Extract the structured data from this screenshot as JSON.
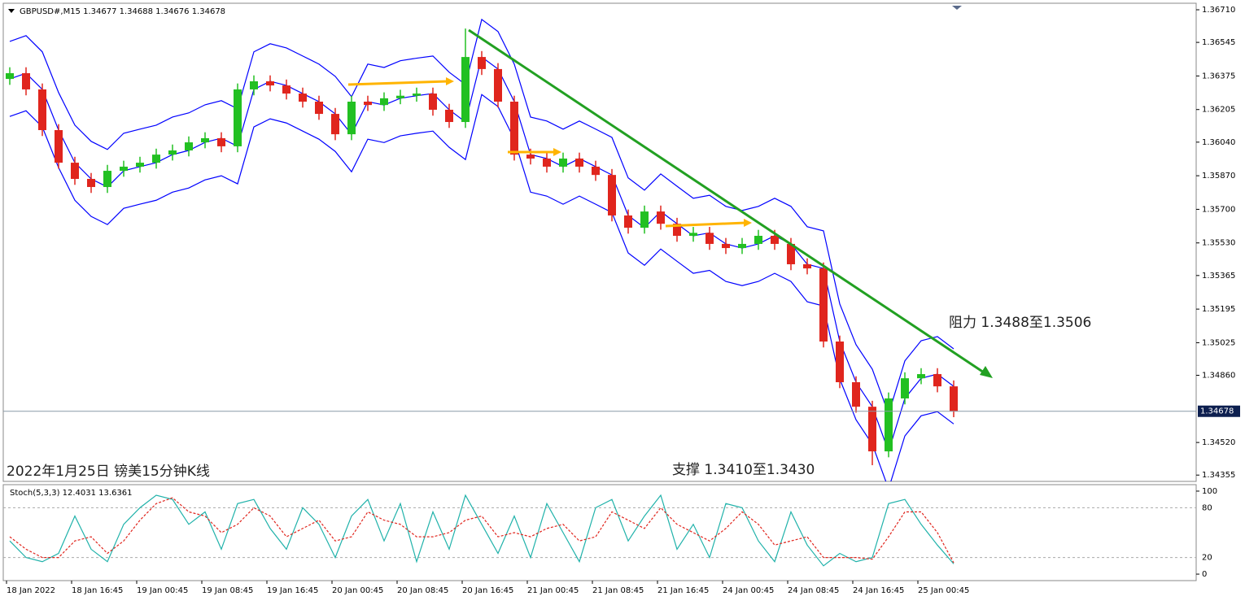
{
  "chart_data": [
    {
      "type": "candlestick",
      "title": "GBPUSD#,M15  1.34677 1.34688 1.34676 1.34678",
      "caption": "2022年1月25日 镑美15分钟K线",
      "annotations": [
        "阻力 1.3488至1.3506",
        "支撑 1.3410至1.3430"
      ],
      "categories": [
        "18 Jan 2022",
        null,
        null,
        null,
        "18 Jan 16:45",
        null,
        null,
        null,
        "19 Jan 00:45",
        null,
        null,
        null,
        "19 Jan 08:45",
        null,
        null,
        null,
        "19 Jan 16:45",
        null,
        null,
        null,
        "20 Jan 00:45",
        null,
        null,
        null,
        "20 Jan 08:45",
        null,
        null,
        null,
        "20 Jan 16:45",
        null,
        null,
        null,
        "21 Jan 00:45",
        null,
        null,
        null,
        "21 Jan 08:45",
        null,
        null,
        null,
        "21 Jan 16:45",
        null,
        null,
        null,
        "24 Jan 00:45",
        null,
        null,
        null,
        "24 Jan 08:45",
        null,
        null,
        null,
        "24 Jan 16:45",
        null,
        null,
        null,
        "25 Jan 00:45",
        null,
        null
      ],
      "open": [
        1.3636,
        1.36389,
        1.36307,
        1.36101,
        1.35936,
        1.35854,
        1.35813,
        1.35895,
        1.35916,
        1.35936,
        1.35977,
        1.35998,
        1.36039,
        1.3606,
        1.36019,
        1.36307,
        1.36348,
        1.36327,
        1.36286,
        1.36245,
        1.36183,
        1.3608,
        1.36245,
        1.36228,
        1.36262,
        1.36275,
        1.36286,
        1.36204,
        1.36142,
        1.36471,
        1.3641,
        1.36245,
        1.35977,
        1.35957,
        1.35916,
        1.35957,
        1.35916,
        1.35874,
        1.35669,
        1.35607,
        1.35689,
        1.35627,
        1.35566,
        1.35581,
        1.35525,
        1.35504,
        1.35525,
        1.35566,
        1.35525,
        1.35422,
        1.35401,
        1.35031,
        1.34825,
        1.34701,
        1.34475,
        1.34743,
        1.34845,
        1.34866,
        1.34804
      ],
      "high": [
        1.36419,
        1.36419,
        1.36337,
        1.36131,
        1.35966,
        1.35884,
        1.35925,
        1.35946,
        1.35966,
        1.36007,
        1.36028,
        1.36069,
        1.3609,
        1.3609,
        1.36337,
        1.36378,
        1.36378,
        1.36357,
        1.36316,
        1.36275,
        1.36213,
        1.36275,
        1.36275,
        1.36292,
        1.36305,
        1.36316,
        1.36316,
        1.36234,
        1.36615,
        1.36501,
        1.3644,
        1.36275,
        1.36007,
        1.35987,
        1.35987,
        1.35987,
        1.35946,
        1.35904,
        1.35699,
        1.35719,
        1.35719,
        1.35657,
        1.35611,
        1.35611,
        1.35555,
        1.35555,
        1.35596,
        1.35596,
        1.35555,
        1.35452,
        1.35431,
        1.35061,
        1.34855,
        1.34731,
        1.34773,
        1.34875,
        1.34896,
        1.34896,
        1.34834
      ],
      "low": [
        1.3633,
        1.36277,
        1.36071,
        1.35906,
        1.35824,
        1.35783,
        1.35783,
        1.35865,
        1.35886,
        1.35906,
        1.35947,
        1.35968,
        1.36009,
        1.35989,
        1.35989,
        1.36277,
        1.36297,
        1.36256,
        1.36215,
        1.36153,
        1.3605,
        1.3605,
        1.36198,
        1.36198,
        1.36232,
        1.36245,
        1.36174,
        1.36112,
        1.36112,
        1.3638,
        1.36215,
        1.35947,
        1.35927,
        1.35886,
        1.35886,
        1.35886,
        1.35844,
        1.35639,
        1.35577,
        1.35577,
        1.35597,
        1.35536,
        1.35536,
        1.35495,
        1.35474,
        1.35474,
        1.35495,
        1.35495,
        1.35392,
        1.35371,
        1.35001,
        1.34795,
        1.34671,
        1.34405,
        1.34445,
        1.34713,
        1.34815,
        1.34774,
        1.34648
      ],
      "close": [
        1.36389,
        1.36307,
        1.36101,
        1.35936,
        1.35854,
        1.35813,
        1.35895,
        1.35916,
        1.35936,
        1.35977,
        1.35998,
        1.36039,
        1.3606,
        1.36019,
        1.36307,
        1.36348,
        1.36327,
        1.36286,
        1.36245,
        1.36183,
        1.3608,
        1.36245,
        1.36228,
        1.36262,
        1.36275,
        1.36286,
        1.36204,
        1.36142,
        1.36471,
        1.3641,
        1.36245,
        1.35977,
        1.35957,
        1.35916,
        1.35957,
        1.35916,
        1.35874,
        1.35669,
        1.35607,
        1.35689,
        1.35627,
        1.35566,
        1.35581,
        1.35525,
        1.35504,
        1.35525,
        1.35566,
        1.35525,
        1.35422,
        1.35401,
        1.35031,
        1.34825,
        1.34701,
        1.34475,
        1.34743,
        1.34845,
        1.34866,
        1.34804,
        1.34678
      ],
      "up_color": "#22c022",
      "down_color": "#e0251d",
      "bands": {
        "color": "#0000ff",
        "upper": [
          1.3655,
          1.36579,
          1.36497,
          1.36291,
          1.36126,
          1.36044,
          1.36003,
          1.36085,
          1.36106,
          1.36126,
          1.36167,
          1.36188,
          1.36229,
          1.3625,
          1.36209,
          1.36497,
          1.36538,
          1.36517,
          1.36476,
          1.36435,
          1.36373,
          1.3627,
          1.36435,
          1.36418,
          1.36452,
          1.36465,
          1.36476,
          1.36394,
          1.36332,
          1.36661,
          1.366,
          1.36435,
          1.36167,
          1.36147,
          1.36106,
          1.36147,
          1.36106,
          1.36064,
          1.35859,
          1.35797,
          1.35879,
          1.35817,
          1.35756,
          1.35771,
          1.35715,
          1.35694,
          1.35715,
          1.35756,
          1.35715,
          1.35612,
          1.35591,
          1.35221,
          1.35015,
          1.34891,
          1.34665,
          1.34933,
          1.35035,
          1.35056,
          1.34994
        ],
        "middle": [
          1.3636,
          1.36389,
          1.36307,
          1.36101,
          1.35936,
          1.35854,
          1.35813,
          1.35895,
          1.35916,
          1.35936,
          1.35977,
          1.35998,
          1.36039,
          1.3606,
          1.36019,
          1.36307,
          1.36348,
          1.36327,
          1.36286,
          1.36245,
          1.36183,
          1.3608,
          1.36245,
          1.36228,
          1.36262,
          1.36275,
          1.36286,
          1.36204,
          1.36142,
          1.36471,
          1.3641,
          1.36245,
          1.35977,
          1.35957,
          1.35916,
          1.35957,
          1.35916,
          1.35874,
          1.35669,
          1.35607,
          1.35689,
          1.35627,
          1.35566,
          1.35581,
          1.35525,
          1.35504,
          1.35525,
          1.35566,
          1.35525,
          1.35422,
          1.35401,
          1.35031,
          1.34825,
          1.34701,
          1.34475,
          1.34743,
          1.34845,
          1.34866,
          1.34804
        ],
        "lower": [
          1.3617,
          1.36199,
          1.36117,
          1.35911,
          1.35746,
          1.35664,
          1.35623,
          1.35705,
          1.35726,
          1.35746,
          1.35787,
          1.35808,
          1.35849,
          1.3587,
          1.35829,
          1.36117,
          1.36158,
          1.36137,
          1.36096,
          1.36055,
          1.35993,
          1.3589,
          1.36055,
          1.36038,
          1.36072,
          1.36085,
          1.36096,
          1.36014,
          1.35952,
          1.36281,
          1.3622,
          1.36055,
          1.35787,
          1.35767,
          1.35726,
          1.35767,
          1.35726,
          1.35684,
          1.35479,
          1.35417,
          1.35499,
          1.35437,
          1.35376,
          1.35391,
          1.35335,
          1.35314,
          1.35335,
          1.35376,
          1.35335,
          1.35232,
          1.35211,
          1.34841,
          1.34635,
          1.34511,
          1.34285,
          1.34553,
          1.34655,
          1.34676,
          1.34614
        ]
      },
      "current_price": 1.34678,
      "ylim": [
        1.34323,
        1.36743
      ],
      "yticks": [
        {
          "value": 1.3671,
          "label": "1.36710"
        },
        1.36545,
        1.36375,
        1.36205,
        {
          "value": 1.3604,
          "label": "1.36040"
        },
        {
          "value": 1.3587,
          "label": "1.35870"
        },
        {
          "value": 1.357,
          "label": "1.35700"
        },
        {
          "value": 1.3553,
          "label": "1.35530"
        },
        1.35365,
        1.35195,
        1.35025,
        {
          "value": 1.3486,
          "label": "1.34860"
        },
        {
          "value": 1.3452,
          "label": "1.34520"
        },
        1.34355
      ]
    },
    {
      "type": "line",
      "title": "Stoch(5,3,3) 12.4031 13.6361",
      "series": [
        {
          "color": "#20b2aa",
          "values": [
            40,
            20,
            15,
            25,
            70,
            30,
            15,
            60,
            80,
            95,
            90,
            60,
            75,
            30,
            85,
            90,
            55,
            30,
            80,
            60,
            20,
            70,
            90,
            40,
            85,
            15,
            75,
            30,
            95,
            60,
            25,
            70,
            20,
            85,
            50,
            15,
            80,
            90,
            40,
            70,
            95,
            30,
            60,
            20,
            85,
            80,
            40,
            15,
            75,
            35,
            10,
            25,
            15,
            20,
            85,
            90,
            60,
            35,
            12.4031
          ]
        },
        {
          "color": "#e0251d",
          "values": [
            45,
            30,
            20,
            20,
            40,
            45,
            25,
            40,
            65,
            85,
            92,
            75,
            70,
            50,
            60,
            80,
            70,
            45,
            55,
            65,
            40,
            45,
            75,
            65,
            60,
            45,
            45,
            50,
            65,
            70,
            45,
            50,
            45,
            55,
            60,
            40,
            45,
            75,
            65,
            55,
            80,
            60,
            50,
            40,
            55,
            75,
            60,
            35,
            40,
            45,
            20,
            20,
            20,
            18,
            45,
            75,
            75,
            50,
            13.6361
          ]
        }
      ],
      "ylim": [
        -7.8,
        107.8
      ],
      "yticks": [
        0,
        20,
        80,
        100
      ]
    }
  ]
}
